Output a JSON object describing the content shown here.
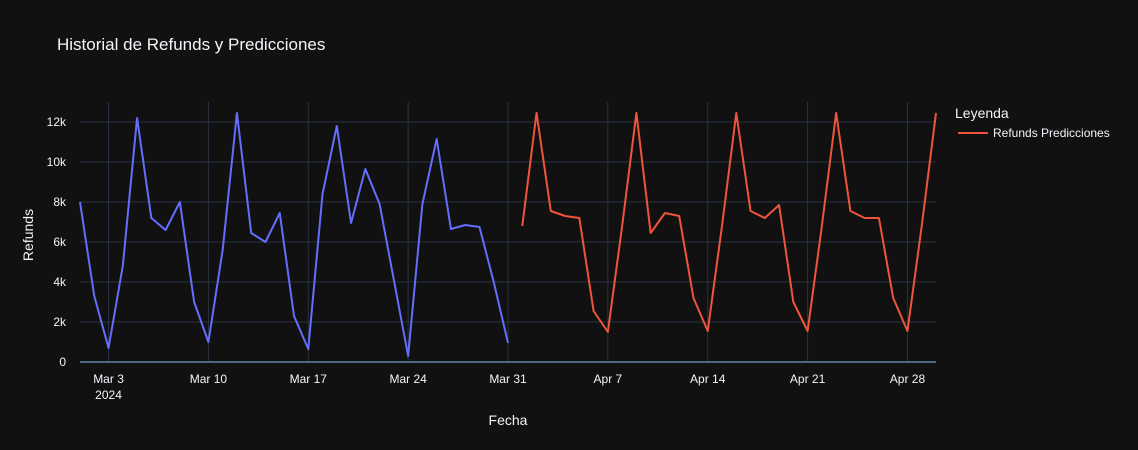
{
  "chart_data": {
    "type": "line",
    "title": "Historial de Refunds y Predicciones",
    "xlabel": "Fecha",
    "ylabel": "Refunds",
    "xlim": [
      "2024-03-01",
      "2024-04-30"
    ],
    "ylim": [
      0,
      13000
    ],
    "x_ticks": [
      {
        "date": "2024-03-03",
        "label": "Mar 3",
        "sublabel": "2024"
      },
      {
        "date": "2024-03-10",
        "label": "Mar 10"
      },
      {
        "date": "2024-03-17",
        "label": "Mar 17"
      },
      {
        "date": "2024-03-24",
        "label": "Mar 24"
      },
      {
        "date": "2024-03-31",
        "label": "Mar 31"
      },
      {
        "date": "2024-04-07",
        "label": "Apr 7"
      },
      {
        "date": "2024-04-14",
        "label": "Apr 14"
      },
      {
        "date": "2024-04-21",
        "label": "Apr 21"
      },
      {
        "date": "2024-04-28",
        "label": "Apr 28"
      }
    ],
    "y_ticks": [
      {
        "value": 0,
        "label": "0"
      },
      {
        "value": 2000,
        "label": "2k"
      },
      {
        "value": 4000,
        "label": "4k"
      },
      {
        "value": 6000,
        "label": "6k"
      },
      {
        "value": 8000,
        "label": "8k"
      },
      {
        "value": 10000,
        "label": "10k"
      },
      {
        "value": 12000,
        "label": "12k"
      }
    ],
    "grid": true,
    "legend": {
      "title": "Leyenda",
      "position": "top-right"
    },
    "series": [
      {
        "color": "#636EFA",
        "show_in_legend": false,
        "x": [
          "2024-03-01",
          "2024-03-02",
          "2024-03-03",
          "2024-03-04",
          "2024-03-05",
          "2024-03-06",
          "2024-03-07",
          "2024-03-08",
          "2024-03-09",
          "2024-03-10",
          "2024-03-11",
          "2024-03-12",
          "2024-03-13",
          "2024-03-14",
          "2024-03-15",
          "2024-03-16",
          "2024-03-17",
          "2024-03-18",
          "2024-03-19",
          "2024-03-20",
          "2024-03-21",
          "2024-03-22",
          "2024-03-23",
          "2024-03-24",
          "2024-03-25",
          "2024-03-26",
          "2024-03-27",
          "2024-03-28",
          "2024-03-29",
          "2024-03-30",
          "2024-03-31"
        ],
        "values": [
          8000,
          3300,
          700,
          4800,
          12200,
          7200,
          6600,
          8000,
          3000,
          1000,
          5600,
          12450,
          6450,
          6000,
          7450,
          2300,
          650,
          8400,
          11800,
          6950,
          9650,
          7900,
          4100,
          300,
          7900,
          11150,
          6650,
          6850,
          6750,
          4000,
          950
        ]
      },
      {
        "name": "Refunds Predicciones",
        "color": "#EF553B",
        "show_in_legend": true,
        "x": [
          "2024-04-01",
          "2024-04-02",
          "2024-04-03",
          "2024-04-04",
          "2024-04-05",
          "2024-04-06",
          "2024-04-07",
          "2024-04-08",
          "2024-04-09",
          "2024-04-10",
          "2024-04-11",
          "2024-04-12",
          "2024-04-13",
          "2024-04-14",
          "2024-04-15",
          "2024-04-16",
          "2024-04-17",
          "2024-04-18",
          "2024-04-19",
          "2024-04-20",
          "2024-04-21",
          "2024-04-22",
          "2024-04-23",
          "2024-04-24",
          "2024-04-25",
          "2024-04-26",
          "2024-04-27",
          "2024-04-28",
          "2024-04-29",
          "2024-04-30"
        ],
        "values": [
          6800,
          12450,
          7550,
          7300,
          7200,
          2550,
          1500,
          6800,
          12450,
          6450,
          7450,
          7300,
          3200,
          1550,
          6800,
          12450,
          7550,
          7200,
          7850,
          3000,
          1550,
          6800,
          12450,
          7550,
          7200,
          7200,
          3200,
          1550,
          6800,
          12450
        ]
      }
    ]
  },
  "colors": {
    "background": "#111111",
    "plot_background": "#111111",
    "grid": "#283442",
    "axis_line": "#506784",
    "text": "#f2f5fa"
  }
}
